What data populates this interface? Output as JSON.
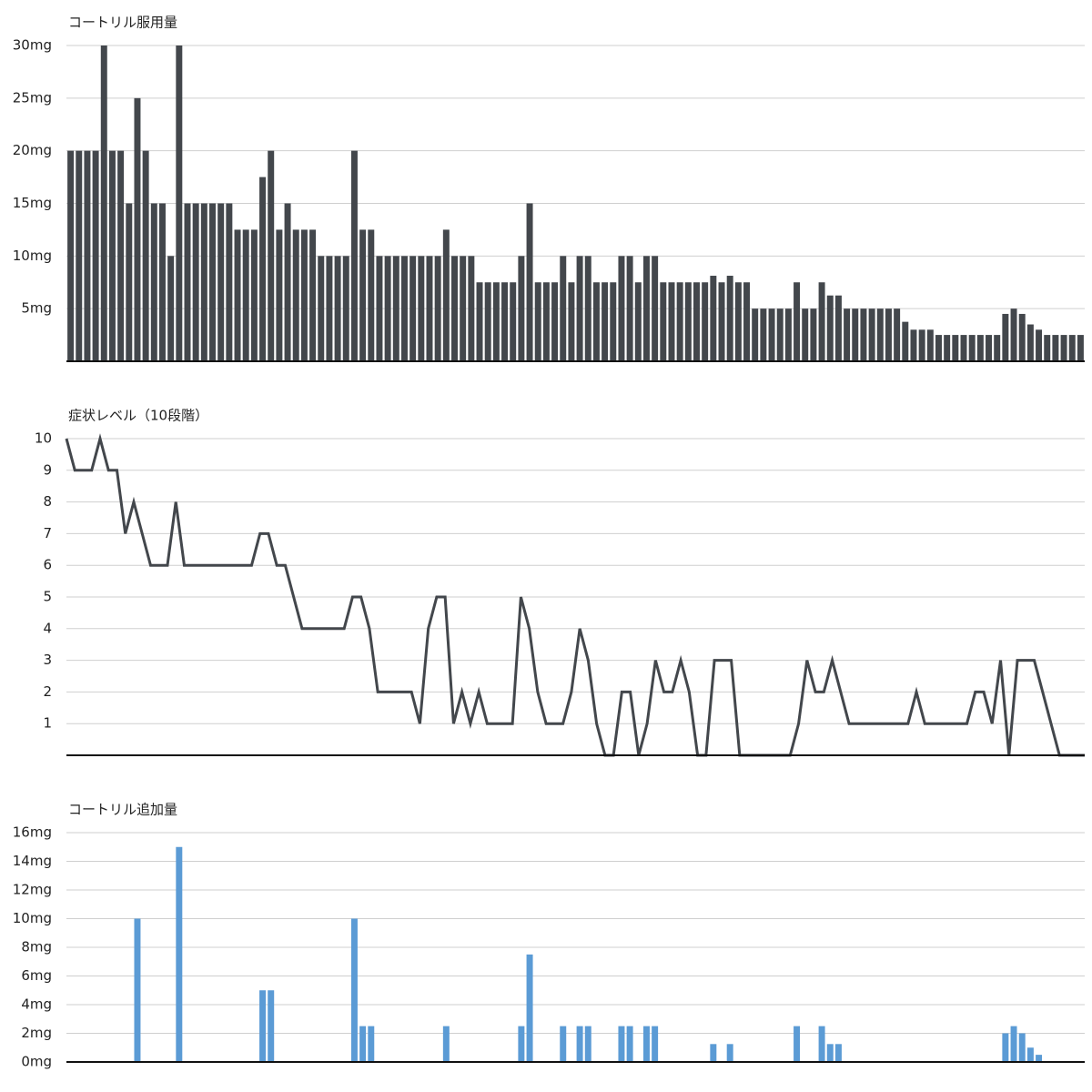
{
  "chart_data": [
    {
      "type": "bar",
      "title": "コートリル服用量",
      "color": "#43474c",
      "grid": true,
      "ylim": [
        0,
        30
      ],
      "yticks": [
        {
          "value": 5,
          "label": "5mg"
        },
        {
          "value": 10,
          "label": "10mg"
        },
        {
          "value": 15,
          "label": "15mg"
        },
        {
          "value": 20,
          "label": "20mg"
        },
        {
          "value": 25,
          "label": "25mg"
        },
        {
          "value": 30,
          "label": "30mg"
        }
      ],
      "values": [
        20,
        20,
        20,
        20,
        30,
        20,
        20,
        15,
        25,
        20,
        15,
        15,
        10,
        30,
        15,
        15,
        15,
        15,
        15,
        15,
        12.5,
        12.5,
        12.5,
        17.5,
        20,
        12.5,
        15,
        12.5,
        12.5,
        12.5,
        10,
        10,
        10,
        10,
        20,
        12.5,
        12.5,
        10,
        10,
        10,
        10,
        10,
        10,
        10,
        10,
        12.5,
        10,
        10,
        10,
        7.5,
        7.5,
        7.5,
        7.5,
        7.5,
        10,
        15,
        7.5,
        7.5,
        7.5,
        10,
        7.5,
        10,
        10,
        7.5,
        7.5,
        7.5,
        10,
        10,
        7.5,
        10,
        10,
        7.5,
        7.5,
        7.5,
        7.5,
        7.5,
        7.5,
        8.125,
        7.5,
        8.125,
        7.5,
        7.5,
        5,
        5,
        5,
        5,
        5,
        7.5,
        5,
        5,
        7.5,
        6.25,
        6.25,
        5,
        5,
        5,
        5,
        5,
        5,
        5,
        3.75,
        3,
        3,
        3,
        2.5,
        2.5,
        2.5,
        2.5,
        2.5,
        2.5,
        2.5,
        2.5,
        4.5,
        5,
        4.5,
        3.5,
        3,
        2.5,
        2.5,
        2.5,
        2.5,
        2.5
      ]
    },
    {
      "type": "line",
      "title": "症状レベル（10段階）",
      "color": "#43474c",
      "grid": true,
      "ylim": [
        0,
        10
      ],
      "yticks": [
        1,
        2,
        3,
        4,
        5,
        6,
        7,
        8,
        9,
        10
      ],
      "values": [
        10,
        9,
        9,
        9,
        10,
        9,
        9,
        7,
        8,
        7,
        6,
        6,
        6,
        8,
        6,
        6,
        6,
        6,
        6,
        6,
        6,
        6,
        6,
        7,
        7,
        6,
        6,
        5,
        4,
        4,
        4,
        4,
        4,
        4,
        5,
        5,
        4,
        2,
        2,
        2,
        2,
        2,
        1,
        4,
        5,
        5,
        1,
        2,
        1,
        2,
        1,
        1,
        1,
        1,
        5,
        4,
        2,
        1,
        1,
        1,
        2,
        4,
        3,
        1,
        0,
        0,
        2,
        2,
        0,
        1,
        3,
        2,
        2,
        3,
        2,
        0,
        0,
        3,
        3,
        3,
        0,
        0,
        0,
        0,
        0,
        0,
        0,
        1,
        3,
        2,
        2,
        3,
        2,
        1,
        1,
        1,
        1,
        1,
        1,
        1,
        1,
        2,
        1,
        1,
        1,
        1,
        1,
        1,
        2,
        2,
        1,
        3,
        0,
        3,
        3,
        3,
        2,
        1,
        0,
        0,
        0,
        0
      ]
    },
    {
      "type": "bar",
      "title": "コートリル追加量",
      "color": "#5b9bd5",
      "grid": true,
      "ylim": [
        0,
        16
      ],
      "yticks": [
        {
          "value": 0,
          "label": "0mg"
        },
        {
          "value": 2,
          "label": "2mg"
        },
        {
          "value": 4,
          "label": "4mg"
        },
        {
          "value": 6,
          "label": "6mg"
        },
        {
          "value": 8,
          "label": "8mg"
        },
        {
          "value": 10,
          "label": "10mg"
        },
        {
          "value": 12,
          "label": "12mg"
        },
        {
          "value": 14,
          "label": "14mg"
        },
        {
          "value": 16,
          "label": "16mg"
        }
      ],
      "values": [
        0,
        0,
        0,
        0,
        0,
        0,
        0,
        0,
        10,
        0,
        0,
        0,
        0,
        15,
        0,
        0,
        0,
        0,
        0,
        0,
        0,
        0,
        0,
        5,
        5,
        0,
        0,
        0,
        0,
        0,
        0,
        0,
        0,
        0,
        10,
        2.5,
        2.5,
        0,
        0,
        0,
        0,
        0,
        0,
        0,
        0,
        2.5,
        0,
        0,
        0,
        0,
        0,
        0,
        0,
        0,
        2.5,
        7.5,
        0,
        0,
        0,
        2.5,
        0,
        2.5,
        2.5,
        0,
        0,
        0,
        2.5,
        2.5,
        0,
        2.5,
        2.5,
        0,
        0,
        0,
        0,
        0,
        0,
        1.25,
        0,
        1.25,
        0,
        0,
        0,
        0,
        0,
        0,
        0,
        2.5,
        0,
        0,
        2.5,
        1.25,
        1.25,
        0,
        0,
        0,
        0,
        0,
        0,
        0,
        0,
        0,
        0,
        0,
        0,
        0,
        0,
        0,
        0,
        0,
        0,
        0,
        2,
        2.5,
        2,
        1,
        0.5,
        0,
        0,
        0,
        0,
        0
      ]
    }
  ]
}
